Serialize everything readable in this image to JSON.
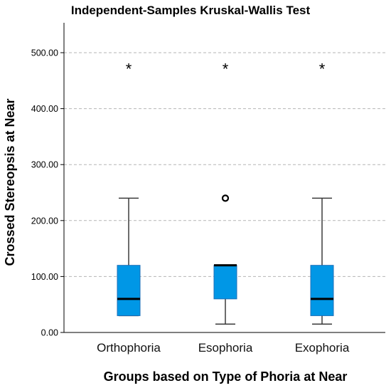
{
  "chart_data": {
    "type": "boxplot",
    "title": "Independent-Samples Kruskal-Wallis Test",
    "xlabel": "Groups based on Type of Phoria at Near",
    "ylabel": "Crossed Stereopsis at Near",
    "ylim": [
      0,
      540
    ],
    "yticks": [
      0,
      100,
      200,
      300,
      400,
      500
    ],
    "ytick_labels": [
      "0.00",
      "100.00",
      "200.00",
      "300.00",
      "400.00",
      "500.00"
    ],
    "grid": true,
    "box_color": "#0097e6",
    "categories": [
      "Orthophoria",
      "Esophoria",
      "Exophoria"
    ],
    "boxes": [
      {
        "min": 30,
        "q1": 30,
        "median": 60,
        "q3": 120,
        "max": 240,
        "outliers": [],
        "extremes": [
          480
        ]
      },
      {
        "min": 15,
        "q1": 60,
        "median": 120,
        "q3": 120,
        "max": 120,
        "outliers": [
          240
        ],
        "extremes": [
          480
        ]
      },
      {
        "min": 15,
        "q1": 30,
        "median": 60,
        "q3": 120,
        "max": 240,
        "outliers": [],
        "extremes": [
          480
        ]
      }
    ]
  }
}
